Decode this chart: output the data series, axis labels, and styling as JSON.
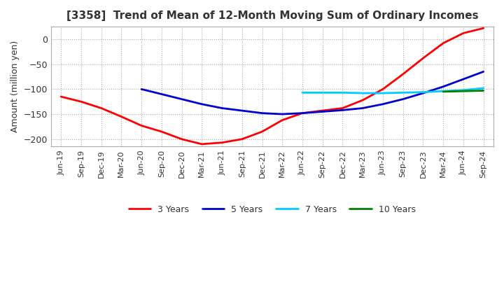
{
  "title": "[3358]  Trend of Mean of 12-Month Moving Sum of Ordinary Incomes",
  "ylabel": "Amount (million yen)",
  "ylim": [
    -215,
    25
  ],
  "yticks": [
    0,
    -50,
    -100,
    -150,
    -200
  ],
  "background_color": "#ffffff",
  "grid_color": "#aaaaaa",
  "x_labels": [
    "Jun-19",
    "Sep-19",
    "Dec-19",
    "Mar-20",
    "Jun-20",
    "Sep-20",
    "Dec-20",
    "Mar-21",
    "Jun-21",
    "Sep-21",
    "Dec-21",
    "Mar-22",
    "Jun-22",
    "Sep-22",
    "Dec-22",
    "Mar-23",
    "Jun-23",
    "Sep-23",
    "Dec-23",
    "Mar-24",
    "Jun-24",
    "Sep-24"
  ],
  "series": {
    "3 Years": {
      "color": "#ff0000",
      "linewidth": 2.0,
      "data": [
        -115,
        -125,
        -138,
        -155,
        -173,
        -185,
        -200,
        -210,
        -207,
        -200,
        -185,
        -162,
        -148,
        -143,
        -138,
        -122,
        -100,
        -70,
        -38,
        -8,
        12,
        22
      ]
    },
    "5 Years": {
      "color": "#0000cc",
      "linewidth": 2.0,
      "data": [
        null,
        null,
        null,
        null,
        -100,
        -110,
        -120,
        -130,
        -138,
        -143,
        -148,
        -150,
        -148,
        -145,
        -142,
        -138,
        -130,
        -120,
        -108,
        -95,
        -80,
        -65
      ]
    },
    "7 Years": {
      "color": "#00ccff",
      "linewidth": 2.0,
      "data": [
        null,
        null,
        null,
        null,
        null,
        null,
        null,
        null,
        null,
        null,
        null,
        null,
        -107,
        -107,
        -107,
        -108,
        -108,
        -107,
        -106,
        -104,
        -102,
        -98
      ]
    },
    "10 Years": {
      "color": "#008000",
      "linewidth": 2.0,
      "data": [
        null,
        null,
        null,
        null,
        null,
        null,
        null,
        null,
        null,
        null,
        null,
        null,
        null,
        null,
        null,
        null,
        null,
        null,
        null,
        -105,
        -104,
        -103
      ]
    }
  }
}
